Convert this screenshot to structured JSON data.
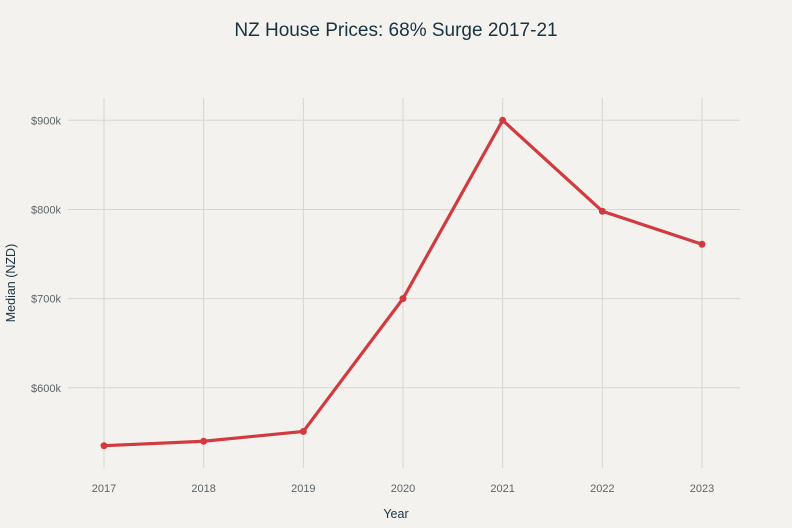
{
  "chart_data": {
    "type": "line",
    "title": "NZ House Prices: 68% Surge 2017-21",
    "xlabel": "Year",
    "ylabel": "Median (NZD)",
    "x": [
      "2017",
      "2018",
      "2019",
      "2020",
      "2021",
      "2022",
      "2023"
    ],
    "series": [
      {
        "values": [
          535000,
          540000,
          551000,
          700000,
          900000,
          798000,
          761000
        ]
      }
    ],
    "ylim": [
      510000,
      925000
    ],
    "y_ticks": [
      600000,
      700000,
      800000,
      900000
    ],
    "y_tick_labels": [
      "$600k",
      "$700k",
      "$800k",
      "$900k"
    ],
    "grid": true,
    "line_color": "#d13b40"
  }
}
